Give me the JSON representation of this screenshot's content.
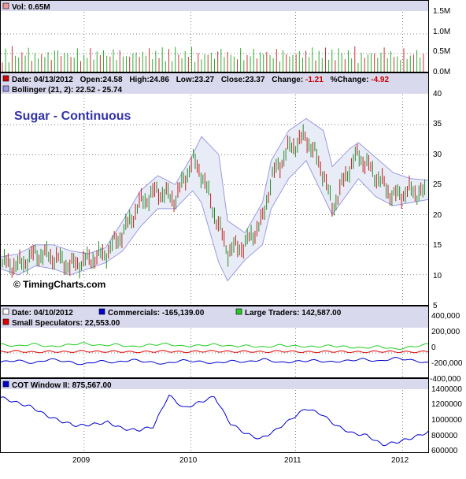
{
  "colors": {
    "panel_header_bg": "#d9d9ee",
    "up_candle": "#2a8a2a",
    "down_candle": "#c02020",
    "bollinger_fill": "#e8ecf6",
    "bollinger_line": "#9a9ae0",
    "commercials": "#0000cc",
    "large_traders": "#22cc22",
    "small_speculators": "#dd0000",
    "cot_window": "#0000cc",
    "title": "#3333aa"
  },
  "volume_panel": {
    "label": "Vol: 0.65M",
    "ticks": [
      "1.5M",
      "1.0M",
      "0.5M",
      "0.0M"
    ]
  },
  "price_panel": {
    "header": {
      "date": "Date: 04/13/2012",
      "open": "Open:24.58",
      "high": "High:24.86",
      "low": "Low:23.27",
      "close": "Close:23.37",
      "change_label": "Change:",
      "change_value": "-1.21",
      "pct_change_label": "%Change:",
      "pct_change_value": "-4.92"
    },
    "bollinger_label": "Bollinger (21, 2): 22.52 - 25.74",
    "title": "Sugar - Continuous",
    "copyright": "© TimingCharts.com",
    "ticks": [
      "40",
      "35",
      "30",
      "25",
      "20",
      "15",
      "10",
      "5"
    ]
  },
  "cot_panel": {
    "date": "Date: 04/10/2012",
    "commercials": "Commercials: -165,139.00",
    "large_traders": "Large Traders: 142,587.00",
    "small_speculators": "Small Speculators: 22,553.00",
    "ticks": [
      "400,000",
      "200,000",
      "0",
      "-200,000",
      "-400,000"
    ]
  },
  "cot_window_panel": {
    "label": "COT Window II: 875,567.00",
    "ticks": [
      "1400000",
      "1200000",
      "1000000",
      "800000",
      "600000"
    ]
  },
  "x_axis": {
    "labels": [
      "2009",
      "2010",
      "2011",
      "2012"
    ]
  },
  "chart_data": [
    {
      "type": "bar",
      "title": "Vol: 0.65M",
      "ylim": [
        0,
        1.6
      ],
      "y_unit": "M",
      "x_range": [
        "2008-03",
        "2012-04"
      ],
      "series": [
        {
          "values": [
            0.45,
            0.62,
            0.38,
            0.71,
            0.55,
            0.42,
            0.6,
            0.52,
            0.68,
            0.4,
            0.5,
            0.58,
            0.47,
            0.66,
            0.53,
            0.44,
            0.6,
            0.7,
            0.48,
            0.56,
            0.62,
            0.41,
            0.55,
            0.63,
            0.5,
            0.45,
            0.57,
            0.65,
            0.43,
            0.59,
            0.52,
            0.68,
            0.46,
            0.54,
            0.61,
            0.49,
            0.57,
            0.7,
            0.42,
            0.58,
            0.51,
            0.64,
            0.45,
            0.6,
            0.53,
            0.66,
            0.48,
            0.56,
            0.62,
            0.65
          ]
        }
      ]
    },
    {
      "type": "line",
      "title": "Sugar - Continuous",
      "ylim": [
        5,
        40
      ],
      "x_range": [
        "2008-03",
        "2012-04"
      ],
      "series": [
        {
          "name": "Close",
          "x": [
            "2008-03",
            "2008-05",
            "2008-07",
            "2008-09",
            "2008-11",
            "2009-01",
            "2009-03",
            "2009-05",
            "2009-07",
            "2009-09",
            "2009-11",
            "2010-01",
            "2010-02",
            "2010-04",
            "2010-05",
            "2010-07",
            "2010-09",
            "2010-10",
            "2010-12",
            "2011-02",
            "2011-04",
            "2011-05",
            "2011-07",
            "2011-08",
            "2011-10",
            "2011-12",
            "2012-02",
            "2012-04"
          ],
          "values": [
            12,
            11.5,
            13.5,
            13,
            11.5,
            12.5,
            13.5,
            17,
            22,
            24,
            22.5,
            29,
            27,
            18,
            14,
            15,
            19,
            26,
            31,
            33,
            27,
            21,
            28,
            30,
            26.5,
            23,
            24,
            23.37
          ]
        },
        {
          "name": "Bollinger Upper",
          "x": [
            "2008-03",
            "2008-05",
            "2008-07",
            "2008-09",
            "2008-11",
            "2009-01",
            "2009-03",
            "2009-05",
            "2009-07",
            "2009-09",
            "2009-11",
            "2010-01",
            "2010-02",
            "2010-04",
            "2010-05",
            "2010-07",
            "2010-09",
            "2010-10",
            "2010-12",
            "2011-02",
            "2011-04",
            "2011-05",
            "2011-07",
            "2011-08",
            "2011-10",
            "2011-12",
            "2012-02",
            "2012-04"
          ],
          "values": [
            13,
            13.5,
            15,
            15,
            14,
            13.5,
            14.5,
            19,
            24,
            26.5,
            25,
            30,
            33,
            30,
            19,
            17,
            22,
            29,
            34,
            36,
            34,
            28,
            31,
            32,
            29.5,
            27,
            26,
            25.74
          ]
        },
        {
          "name": "Bollinger Lower",
          "x": [
            "2008-03",
            "2008-05",
            "2008-07",
            "2008-09",
            "2008-11",
            "2009-01",
            "2009-03",
            "2009-05",
            "2009-07",
            "2009-09",
            "2009-11",
            "2010-01",
            "2010-02",
            "2010-04",
            "2010-05",
            "2010-07",
            "2010-09",
            "2010-10",
            "2010-12",
            "2011-02",
            "2011-04",
            "2011-05",
            "2011-07",
            "2011-08",
            "2011-10",
            "2011-12",
            "2012-02",
            "2012-04"
          ],
          "values": [
            11,
            10,
            11.5,
            11,
            10,
            11,
            12,
            14,
            18,
            21,
            21,
            24,
            22,
            12,
            9,
            12.5,
            15,
            21,
            26,
            29,
            23,
            20,
            24,
            26,
            23,
            21.5,
            22,
            22.52
          ]
        }
      ]
    },
    {
      "type": "line",
      "title": "COT",
      "ylim": [
        -400000,
        400000
      ],
      "x_range": [
        "2008-03",
        "2012-04"
      ],
      "series": [
        {
          "name": "Commercials",
          "values": [
            -150000,
            -120000,
            -170000,
            -100000,
            -140000,
            -190000,
            -130000,
            -160000,
            -110000,
            -150000,
            -180000,
            -120000,
            -140000,
            -170000,
            -130000,
            -150000,
            -100000,
            -160000,
            -140000,
            -120000,
            -150000,
            -130000,
            -100000,
            -140000,
            -80000,
            -120000,
            -165139
          ]
        },
        {
          "name": "Large Traders",
          "values": [
            140000,
            110000,
            150000,
            100000,
            130000,
            160000,
            120000,
            140000,
            100000,
            130000,
            150000,
            110000,
            120000,
            140000,
            110000,
            120000,
            90000,
            130000,
            110000,
            100000,
            120000,
            100000,
            80000,
            110000,
            60000,
            100000,
            142587
          ]
        },
        {
          "name": "Small Speculators",
          "values": [
            20000,
            30000,
            10000,
            25000,
            15000,
            30000,
            20000,
            25000,
            15000,
            20000,
            30000,
            15000,
            25000,
            30000,
            20000,
            25000,
            15000,
            30000,
            20000,
            15000,
            25000,
            20000,
            15000,
            25000,
            20000,
            15000,
            22553
          ]
        }
      ]
    },
    {
      "type": "line",
      "title": "COT Window II: 875,567.00",
      "ylim": [
        600000,
        1450000
      ],
      "x_range": [
        "2008-03",
        "2012-04"
      ],
      "series": [
        {
          "name": "COT Window II",
          "values": [
            1350000,
            1280000,
            1220000,
            1100000,
            1020000,
            960000,
            980000,
            1010000,
            920000,
            900000,
            950000,
            1380000,
            1200000,
            1280000,
            1360000,
            1000000,
            860000,
            780000,
            900000,
            1050000,
            1200000,
            1120000,
            960000,
            860000,
            830000,
            700000,
            740000,
            800000,
            875567
          ]
        }
      ]
    }
  ]
}
